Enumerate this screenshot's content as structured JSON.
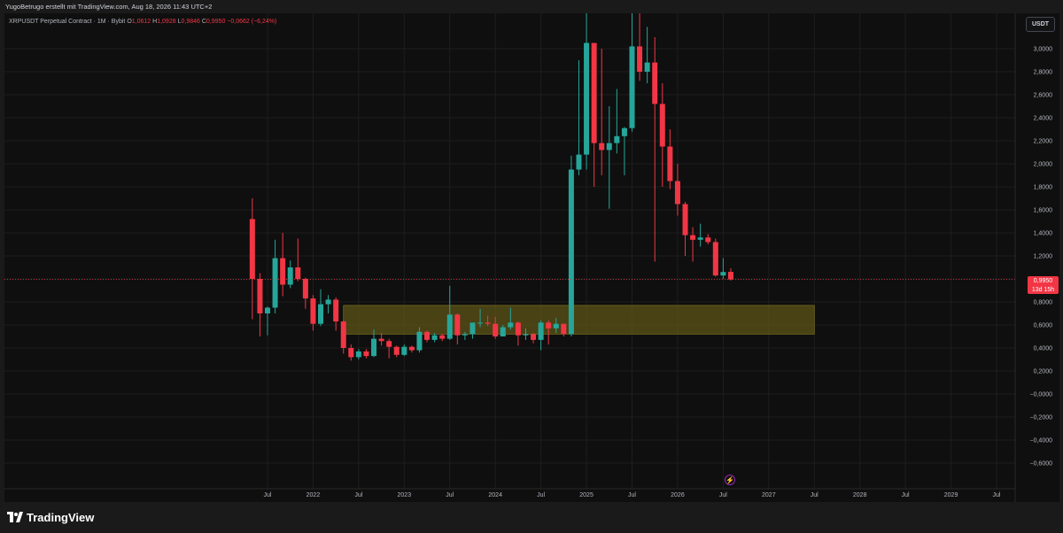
{
  "attribution": "YugoBetrugo erstellt mit TradingView.com, Aug 18, 2026 11:43 UTC+2",
  "legend": {
    "symbol": "XRPUSDT Perpetual Contract · 1M · Bybit",
    "o_label": "O",
    "o": "1,0612",
    "h_label": "H",
    "h": "1,0928",
    "l_label": "L",
    "l": "0,9846",
    "c_label": "C",
    "c": "0,9950",
    "change": "−0,0662 (−6,24%)"
  },
  "currency": "USDT",
  "last_price_tag": {
    "price": "0,9950",
    "countdown": "13d 15h"
  },
  "event_icon": "lightning-icon",
  "brand": "TradingView",
  "colors": {
    "up": "#26a69a",
    "down": "#f23645",
    "zone_fill": "#5c5418",
    "zone_stroke": "#c9b52a",
    "grid": "#1e1e1e",
    "price_line": "#f23645"
  },
  "chart_data": {
    "type": "candlestick",
    "interval": "1M",
    "y_axis": {
      "side": "right",
      "range": [
        -0.68,
        3.18
      ],
      "ticks": [
        "3,0000",
        "2,8000",
        "2,6000",
        "2,4000",
        "2,2000",
        "2,0000",
        "1,8000",
        "1,6000",
        "1,4000",
        "1,2000",
        "1,0000",
        "0,8000",
        "0,6000",
        "0,4000",
        "0,2000",
        "−0,0000",
        "−0,2000",
        "−0,4000",
        "−0,6000"
      ],
      "tick_values": [
        3.0,
        2.8,
        2.6,
        2.4,
        2.2,
        2.0,
        1.8,
        1.6,
        1.4,
        1.2,
        1.0,
        0.8,
        0.6,
        0.4,
        0.2,
        0.0,
        -0.2,
        -0.4,
        -0.6
      ]
    },
    "x_axis": {
      "start": "2021-01",
      "end": "2029-12",
      "ticks": [
        {
          "label": "Jul",
          "date": "2021-07"
        },
        {
          "label": "2022",
          "date": "2022-01"
        },
        {
          "label": "Jul",
          "date": "2022-07"
        },
        {
          "label": "2023",
          "date": "2023-01"
        },
        {
          "label": "Jul",
          "date": "2023-07"
        },
        {
          "label": "2024",
          "date": "2024-01"
        },
        {
          "label": "Jul",
          "date": "2024-07"
        },
        {
          "label": "2025",
          "date": "2025-01"
        },
        {
          "label": "Jul",
          "date": "2025-07"
        },
        {
          "label": "2026",
          "date": "2026-01"
        },
        {
          "label": "Jul",
          "date": "2026-07"
        },
        {
          "label": "2027",
          "date": "2027-01"
        },
        {
          "label": "Jul",
          "date": "2027-07"
        },
        {
          "label": "2028",
          "date": "2028-01"
        },
        {
          "label": "Jul",
          "date": "2028-07"
        },
        {
          "label": "2029",
          "date": "2029-01"
        },
        {
          "label": "Jul",
          "date": "2029-07"
        }
      ]
    },
    "candles": [
      {
        "date": "2021-05",
        "o": 1.52,
        "h": 1.7,
        "l": 0.65,
        "c": 1.0
      },
      {
        "date": "2021-06",
        "o": 1.0,
        "h": 1.05,
        "l": 0.5,
        "c": 0.7
      },
      {
        "date": "2021-07",
        "o": 0.7,
        "h": 0.76,
        "l": 0.51,
        "c": 0.75
      },
      {
        "date": "2021-08",
        "o": 0.75,
        "h": 1.34,
        "l": 0.7,
        "c": 1.18
      },
      {
        "date": "2021-09",
        "o": 1.18,
        "h": 1.4,
        "l": 0.85,
        "c": 0.95
      },
      {
        "date": "2021-10",
        "o": 0.95,
        "h": 1.16,
        "l": 0.92,
        "c": 1.1
      },
      {
        "date": "2021-11",
        "o": 1.1,
        "h": 1.35,
        "l": 0.98,
        "c": 1.0
      },
      {
        "date": "2021-12",
        "o": 1.0,
        "h": 1.01,
        "l": 0.74,
        "c": 0.83
      },
      {
        "date": "2022-01",
        "o": 0.83,
        "h": 0.86,
        "l": 0.55,
        "c": 0.61
      },
      {
        "date": "2022-02",
        "o": 0.61,
        "h": 0.91,
        "l": 0.59,
        "c": 0.78
      },
      {
        "date": "2022-03",
        "o": 0.78,
        "h": 0.86,
        "l": 0.7,
        "c": 0.82
      },
      {
        "date": "2022-04",
        "o": 0.82,
        "h": 0.84,
        "l": 0.55,
        "c": 0.63
      },
      {
        "date": "2022-05",
        "o": 0.63,
        "h": 0.64,
        "l": 0.35,
        "c": 0.4
      },
      {
        "date": "2022-06",
        "o": 0.4,
        "h": 0.43,
        "l": 0.29,
        "c": 0.32
      },
      {
        "date": "2022-07",
        "o": 0.32,
        "h": 0.39,
        "l": 0.3,
        "c": 0.37
      },
      {
        "date": "2022-08",
        "o": 0.37,
        "h": 0.39,
        "l": 0.31,
        "c": 0.33
      },
      {
        "date": "2022-09",
        "o": 0.33,
        "h": 0.56,
        "l": 0.32,
        "c": 0.48
      },
      {
        "date": "2022-10",
        "o": 0.48,
        "h": 0.53,
        "l": 0.42,
        "c": 0.46
      },
      {
        "date": "2022-11",
        "o": 0.46,
        "h": 0.48,
        "l": 0.31,
        "c": 0.41
      },
      {
        "date": "2022-12",
        "o": 0.41,
        "h": 0.42,
        "l": 0.32,
        "c": 0.34
      },
      {
        "date": "2023-01",
        "o": 0.34,
        "h": 0.43,
        "l": 0.33,
        "c": 0.41
      },
      {
        "date": "2023-02",
        "o": 0.41,
        "h": 0.42,
        "l": 0.36,
        "c": 0.38
      },
      {
        "date": "2023-03",
        "o": 0.38,
        "h": 0.58,
        "l": 0.36,
        "c": 0.54
      },
      {
        "date": "2023-04",
        "o": 0.54,
        "h": 0.55,
        "l": 0.45,
        "c": 0.47
      },
      {
        "date": "2023-05",
        "o": 0.47,
        "h": 0.53,
        "l": 0.45,
        "c": 0.51
      },
      {
        "date": "2023-06",
        "o": 0.51,
        "h": 0.52,
        "l": 0.46,
        "c": 0.48
      },
      {
        "date": "2023-07",
        "o": 0.48,
        "h": 0.94,
        "l": 0.47,
        "c": 0.69
      },
      {
        "date": "2023-08",
        "o": 0.69,
        "h": 0.7,
        "l": 0.43,
        "c": 0.51
      },
      {
        "date": "2023-09",
        "o": 0.51,
        "h": 0.54,
        "l": 0.47,
        "c": 0.52
      },
      {
        "date": "2023-10",
        "o": 0.52,
        "h": 0.62,
        "l": 0.48,
        "c": 0.62
      },
      {
        "date": "2023-11",
        "o": 0.62,
        "h": 0.74,
        "l": 0.58,
        "c": 0.62
      },
      {
        "date": "2023-12",
        "o": 0.62,
        "h": 0.68,
        "l": 0.59,
        "c": 0.61
      },
      {
        "date": "2024-01",
        "o": 0.61,
        "h": 0.67,
        "l": 0.48,
        "c": 0.5
      },
      {
        "date": "2024-02",
        "o": 0.5,
        "h": 0.6,
        "l": 0.5,
        "c": 0.58
      },
      {
        "date": "2024-03",
        "o": 0.58,
        "h": 0.75,
        "l": 0.56,
        "c": 0.62
      },
      {
        "date": "2024-04",
        "o": 0.62,
        "h": 0.63,
        "l": 0.42,
        "c": 0.51
      },
      {
        "date": "2024-05",
        "o": 0.51,
        "h": 0.57,
        "l": 0.47,
        "c": 0.52
      },
      {
        "date": "2024-06",
        "o": 0.52,
        "h": 0.53,
        "l": 0.44,
        "c": 0.47
      },
      {
        "date": "2024-07",
        "o": 0.47,
        "h": 0.64,
        "l": 0.38,
        "c": 0.62
      },
      {
        "date": "2024-08",
        "o": 0.62,
        "h": 0.64,
        "l": 0.43,
        "c": 0.57
      },
      {
        "date": "2024-09",
        "o": 0.57,
        "h": 0.66,
        "l": 0.53,
        "c": 0.61
      },
      {
        "date": "2024-10",
        "o": 0.61,
        "h": 0.61,
        "l": 0.5,
        "c": 0.52
      },
      {
        "date": "2024-11",
        "o": 0.52,
        "h": 2.07,
        "l": 0.5,
        "c": 1.95
      },
      {
        "date": "2024-12",
        "o": 1.95,
        "h": 2.9,
        "l": 1.9,
        "c": 2.08
      },
      {
        "date": "2025-01",
        "o": 2.08,
        "h": 3.4,
        "l": 1.95,
        "c": 3.05
      },
      {
        "date": "2025-02",
        "o": 3.05,
        "h": 3.05,
        "l": 1.8,
        "c": 2.18
      },
      {
        "date": "2025-03",
        "o": 2.18,
        "h": 3.0,
        "l": 1.9,
        "c": 2.12
      },
      {
        "date": "2025-04",
        "o": 2.12,
        "h": 2.5,
        "l": 1.61,
        "c": 2.18
      },
      {
        "date": "2025-05",
        "o": 2.18,
        "h": 2.65,
        "l": 2.09,
        "c": 2.24
      },
      {
        "date": "2025-06",
        "o": 2.24,
        "h": 2.32,
        "l": 1.9,
        "c": 2.31
      },
      {
        "date": "2025-07",
        "o": 2.31,
        "h": 3.66,
        "l": 2.28,
        "c": 3.02
      },
      {
        "date": "2025-08",
        "o": 3.02,
        "h": 3.38,
        "l": 2.72,
        "c": 2.8
      },
      {
        "date": "2025-09",
        "o": 2.8,
        "h": 3.19,
        "l": 2.7,
        "c": 2.88
      },
      {
        "date": "2025-10",
        "o": 2.88,
        "h": 3.1,
        "l": 1.15,
        "c": 2.52
      },
      {
        "date": "2025-11",
        "o": 2.52,
        "h": 2.7,
        "l": 1.8,
        "c": 2.15
      },
      {
        "date": "2025-12",
        "o": 2.15,
        "h": 2.3,
        "l": 1.78,
        "c": 1.85
      },
      {
        "date": "2026-01",
        "o": 1.85,
        "h": 2.0,
        "l": 1.55,
        "c": 1.65
      },
      {
        "date": "2026-02",
        "o": 1.65,
        "h": 1.67,
        "l": 1.2,
        "c": 1.38
      },
      {
        "date": "2026-03",
        "o": 1.38,
        "h": 1.45,
        "l": 1.15,
        "c": 1.34
      },
      {
        "date": "2026-04",
        "o": 1.34,
        "h": 1.48,
        "l": 1.28,
        "c": 1.36
      },
      {
        "date": "2026-05",
        "o": 1.36,
        "h": 1.39,
        "l": 1.3,
        "c": 1.32
      },
      {
        "date": "2026-06",
        "o": 1.32,
        "h": 1.35,
        "l": 1.02,
        "c": 1.03
      },
      {
        "date": "2026-07",
        "o": 1.03,
        "h": 1.18,
        "l": 1.0,
        "c": 1.06
      },
      {
        "date": "2026-08",
        "o": 1.0612,
        "h": 1.0928,
        "l": 0.9846,
        "c": 0.995
      }
    ],
    "zone": {
      "from": "2022-05",
      "to": "2027-07",
      "low": 0.52,
      "high": 0.77
    },
    "last_price": 0.995,
    "grid": true
  }
}
